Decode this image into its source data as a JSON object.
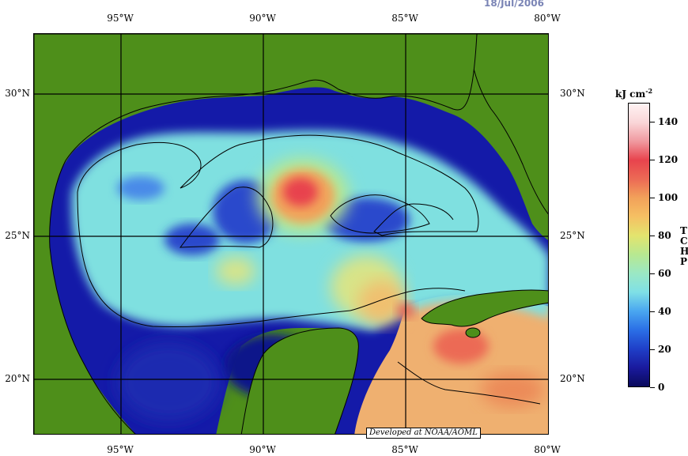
{
  "map": {
    "date": "18/Jul/2006",
    "credit": "Developed at NOAA/AOML",
    "lon_labels": [
      "95°W",
      "90°W",
      "85°W",
      "80°W"
    ],
    "lat_labels": [
      "30°N",
      "25°N",
      "20°N"
    ]
  },
  "legend": {
    "unit": "kJ cm",
    "unit_exp": "-2",
    "title_letters": [
      "T",
      "C",
      "H",
      "P"
    ],
    "ticks": [
      "0",
      "20",
      "40",
      "60",
      "80",
      "100",
      "120",
      "140"
    ]
  },
  "colors": {
    "land": "#4e8f1a",
    "border_line": "#000000",
    "contour": "#000000"
  }
}
